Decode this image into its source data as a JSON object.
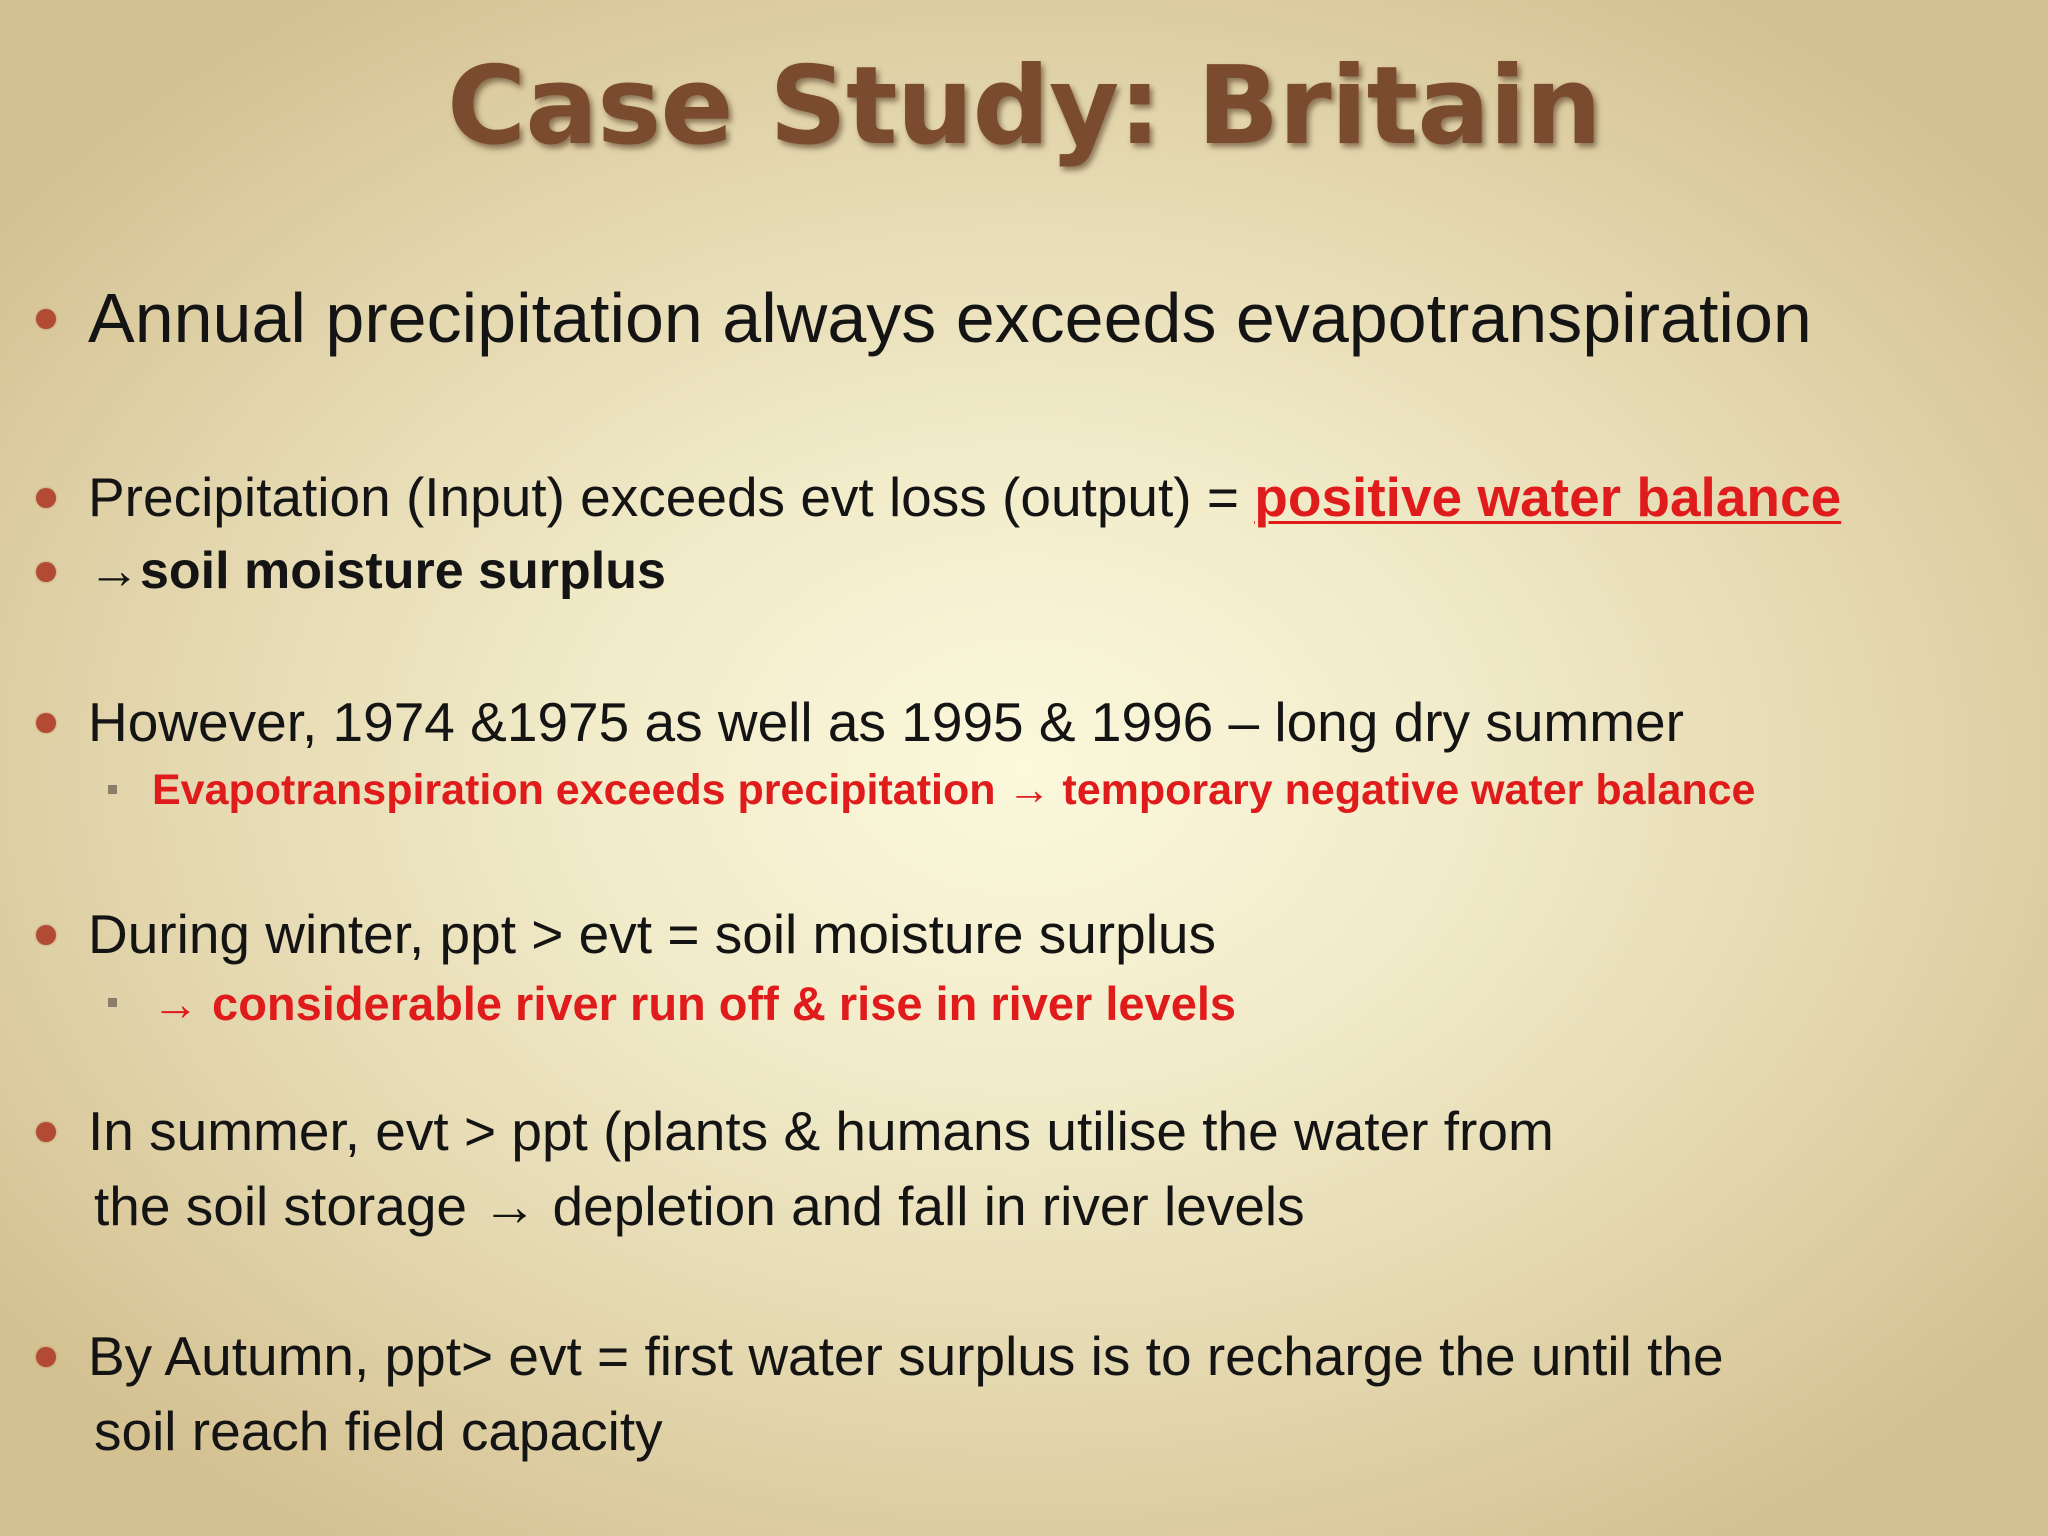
{
  "title": "Case Study: Britain",
  "bullets": {
    "b1": "Annual precipitation always exceeds evapotranspiration",
    "b2_text": "Precipitation (Input) exceeds evt loss (output) = ",
    "b2_highlight": "positive water balance",
    "b3": "→soil moisture surplus",
    "b4": "However, 1974 &1975 as well as 1995 & 1996 – long dry summer",
    "b4_sub": "Evapotranspiration exceeds precipitation → temporary negative water balance",
    "b5": "During winter, ppt > evt = soil moisture surplus",
    "b5_sub": "→ considerable river run off & rise in river levels",
    "b6_line1": "In summer, evt > ppt  (plants & humans utilise the water from",
    "b6_line2": "the soil storage  → depletion and fall in river levels",
    "b7_line1": "By Autumn, ppt> evt = first water surplus is to recharge the until the",
    "b7_line2": "soil reach field capacity"
  },
  "colors": {
    "title": "#7a4b2e",
    "bullet": "#b34a34",
    "highlight_red": "#e01b1b",
    "background_center": "#fbf8dc",
    "background_edge": "#d4c192"
  }
}
